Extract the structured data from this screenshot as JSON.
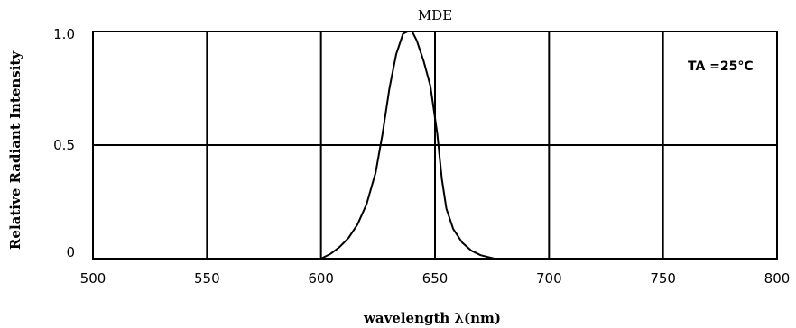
{
  "chart_data": {
    "type": "line",
    "title": "MDE",
    "xlabel": "wavelength λ(nm)",
    "ylabel": "Relative Radiant Intensity",
    "xlim": [
      500,
      800
    ],
    "ylim": [
      0,
      1.0
    ],
    "x_ticks": [
      "500",
      "550",
      "600",
      "650",
      "700",
      "750",
      "800"
    ],
    "x_tick_values": [
      500,
      550,
      600,
      650,
      700,
      750,
      800
    ],
    "y_ticks": [
      "0",
      "0.5",
      "1.0"
    ],
    "y_tick_values": [
      0,
      0.5,
      1.0
    ],
    "grid": true,
    "annotation": "TA =25°C",
    "series": [
      {
        "x": [
          600,
          604,
          608,
          612,
          616,
          620,
          624,
          627,
          630,
          633,
          636,
          638,
          640,
          642,
          645,
          648,
          651,
          653,
          655,
          658,
          662,
          666,
          670,
          674,
          676
        ],
        "y": [
          0.0,
          0.02,
          0.05,
          0.09,
          0.15,
          0.24,
          0.38,
          0.55,
          0.75,
          0.9,
          0.99,
          1.0,
          1.0,
          0.96,
          0.87,
          0.76,
          0.55,
          0.35,
          0.22,
          0.13,
          0.07,
          0.035,
          0.015,
          0.005,
          0.0
        ]
      }
    ]
  }
}
